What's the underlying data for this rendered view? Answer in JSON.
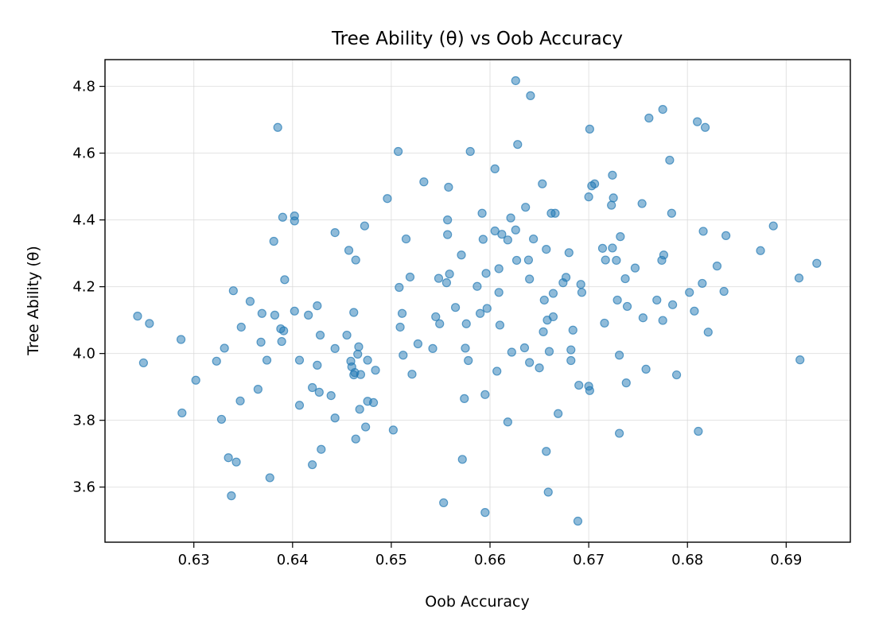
{
  "chart_data": {
    "type": "scatter",
    "title": "Tree Ability (θ) vs Oob Accuracy",
    "xlabel": "Oob Accuracy",
    "ylabel": "Tree Ability (θ)",
    "xlim": [
      0.621,
      0.6965
    ],
    "ylim": [
      3.435,
      4.88
    ],
    "xticks": [
      0.63,
      0.64,
      0.65,
      0.66,
      0.67,
      0.68,
      0.69
    ],
    "xtick_labels": [
      "0.63",
      "0.64",
      "0.65",
      "0.66",
      "0.67",
      "0.68",
      "0.69"
    ],
    "yticks": [
      3.6,
      3.8,
      4.0,
      4.2,
      4.4,
      4.6,
      4.8
    ],
    "ytick_labels": [
      "3.6",
      "3.8",
      "4.0",
      "4.2",
      "4.4",
      "4.6",
      "4.8"
    ],
    "grid": true,
    "color": "#1f77b4",
    "points": [
      [
        0.6243,
        4.112
      ],
      [
        0.6249,
        3.972
      ],
      [
        0.6255,
        4.09
      ],
      [
        0.6287,
        4.042
      ],
      [
        0.6288,
        3.822
      ],
      [
        0.6302,
        3.92
      ],
      [
        0.6323,
        3.977
      ],
      [
        0.6328,
        3.803
      ],
      [
        0.6331,
        4.016
      ],
      [
        0.6335,
        3.688
      ],
      [
        0.6338,
        3.574
      ],
      [
        0.634,
        4.188
      ],
      [
        0.6343,
        3.675
      ],
      [
        0.6347,
        3.858
      ],
      [
        0.6348,
        4.079
      ],
      [
        0.6357,
        4.156
      ],
      [
        0.6365,
        3.893
      ],
      [
        0.6368,
        4.034
      ],
      [
        0.6369,
        4.12
      ],
      [
        0.6374,
        3.98
      ],
      [
        0.6377,
        3.628
      ],
      [
        0.6381,
        4.336
      ],
      [
        0.6382,
        4.115
      ],
      [
        0.6385,
        4.677
      ],
      [
        0.6388,
        4.074
      ],
      [
        0.6389,
        4.036
      ],
      [
        0.639,
        4.408
      ],
      [
        0.6391,
        4.068
      ],
      [
        0.6392,
        4.221
      ],
      [
        0.6402,
        4.127
      ],
      [
        0.6402,
        4.412
      ],
      [
        0.6402,
        4.397
      ],
      [
        0.6407,
        3.98
      ],
      [
        0.6407,
        3.845
      ],
      [
        0.6416,
        4.115
      ],
      [
        0.642,
        3.898
      ],
      [
        0.642,
        3.667
      ],
      [
        0.6425,
        4.143
      ],
      [
        0.6425,
        3.965
      ],
      [
        0.6427,
        3.884
      ],
      [
        0.6428,
        4.055
      ],
      [
        0.6429,
        3.713
      ],
      [
        0.6439,
        3.874
      ],
      [
        0.6443,
        4.362
      ],
      [
        0.6443,
        4.015
      ],
      [
        0.6443,
        3.807
      ],
      [
        0.6455,
        4.055
      ],
      [
        0.6457,
        4.309
      ],
      [
        0.6459,
        3.977
      ],
      [
        0.646,
        3.96
      ],
      [
        0.6462,
        3.936
      ],
      [
        0.6462,
        4.123
      ],
      [
        0.6463,
        3.943
      ],
      [
        0.6464,
        4.28
      ],
      [
        0.6464,
        3.744
      ],
      [
        0.6466,
        3.998
      ],
      [
        0.6467,
        4.02
      ],
      [
        0.6468,
        3.833
      ],
      [
        0.6469,
        3.937
      ],
      [
        0.6473,
        4.382
      ],
      [
        0.6474,
        3.78
      ],
      [
        0.6476,
        3.98
      ],
      [
        0.6476,
        3.857
      ],
      [
        0.6482,
        3.853
      ],
      [
        0.6484,
        3.95
      ],
      [
        0.6496,
        4.464
      ],
      [
        0.6502,
        3.771
      ],
      [
        0.6507,
        4.605
      ],
      [
        0.6508,
        4.198
      ],
      [
        0.6509,
        4.079
      ],
      [
        0.6511,
        4.12
      ],
      [
        0.6512,
        3.995
      ],
      [
        0.6515,
        4.343
      ],
      [
        0.6519,
        4.229
      ],
      [
        0.6521,
        3.938
      ],
      [
        0.6527,
        4.029
      ],
      [
        0.6533,
        4.514
      ],
      [
        0.6542,
        4.015
      ],
      [
        0.6545,
        4.11
      ],
      [
        0.6548,
        4.225
      ],
      [
        0.6549,
        4.089
      ],
      [
        0.6553,
        3.553
      ],
      [
        0.6556,
        4.212
      ],
      [
        0.6557,
        4.356
      ],
      [
        0.6557,
        4.4
      ],
      [
        0.6558,
        4.498
      ],
      [
        0.6559,
        4.238
      ],
      [
        0.6565,
        4.138
      ],
      [
        0.6571,
        4.295
      ],
      [
        0.6572,
        3.683
      ],
      [
        0.6574,
        3.865
      ],
      [
        0.6575,
        4.016
      ],
      [
        0.6576,
        4.089
      ],
      [
        0.6578,
        3.979
      ],
      [
        0.658,
        4.605
      ],
      [
        0.6587,
        4.201
      ],
      [
        0.659,
        4.12
      ],
      [
        0.6592,
        4.42
      ],
      [
        0.6593,
        4.342
      ],
      [
        0.6595,
        3.524
      ],
      [
        0.6595,
        3.877
      ],
      [
        0.6596,
        4.24
      ],
      [
        0.6597,
        4.135
      ],
      [
        0.6605,
        4.367
      ],
      [
        0.6605,
        4.553
      ],
      [
        0.6607,
        3.947
      ],
      [
        0.6609,
        4.254
      ],
      [
        0.6609,
        4.183
      ],
      [
        0.661,
        4.085
      ],
      [
        0.6612,
        4.357
      ],
      [
        0.6618,
        4.34
      ],
      [
        0.6618,
        3.795
      ],
      [
        0.6621,
        4.406
      ],
      [
        0.6622,
        4.004
      ],
      [
        0.6626,
        4.37
      ],
      [
        0.6626,
        4.817
      ],
      [
        0.6627,
        4.279
      ],
      [
        0.6628,
        4.626
      ],
      [
        0.6635,
        4.017
      ],
      [
        0.6636,
        4.438
      ],
      [
        0.6639,
        4.28
      ],
      [
        0.664,
        4.223
      ],
      [
        0.664,
        3.973
      ],
      [
        0.6641,
        4.772
      ],
      [
        0.6644,
        4.343
      ],
      [
        0.665,
        3.957
      ],
      [
        0.6653,
        4.508
      ],
      [
        0.6654,
        4.065
      ],
      [
        0.6655,
        4.16
      ],
      [
        0.6657,
        3.707
      ],
      [
        0.6657,
        4.312
      ],
      [
        0.6658,
        4.1
      ],
      [
        0.6659,
        3.585
      ],
      [
        0.666,
        4.006
      ],
      [
        0.6662,
        4.42
      ],
      [
        0.6664,
        4.18
      ],
      [
        0.6664,
        4.11
      ],
      [
        0.6666,
        4.42
      ],
      [
        0.6669,
        3.82
      ],
      [
        0.6674,
        4.212
      ],
      [
        0.6677,
        4.228
      ],
      [
        0.668,
        4.302
      ],
      [
        0.6682,
        4.011
      ],
      [
        0.6682,
        3.979
      ],
      [
        0.6684,
        4.07
      ],
      [
        0.6689,
        3.498
      ],
      [
        0.669,
        3.905
      ],
      [
        0.6692,
        4.207
      ],
      [
        0.6693,
        4.183
      ],
      [
        0.67,
        4.469
      ],
      [
        0.67,
        3.902
      ],
      [
        0.6701,
        4.672
      ],
      [
        0.6701,
        3.889
      ],
      [
        0.6703,
        4.502
      ],
      [
        0.6706,
        4.508
      ],
      [
        0.6714,
        4.315
      ],
      [
        0.6716,
        4.091
      ],
      [
        0.6717,
        4.28
      ],
      [
        0.6723,
        4.444
      ],
      [
        0.6724,
        4.534
      ],
      [
        0.6724,
        4.316
      ],
      [
        0.6725,
        4.466
      ],
      [
        0.6728,
        4.279
      ],
      [
        0.6729,
        4.16
      ],
      [
        0.6731,
        3.761
      ],
      [
        0.6731,
        3.995
      ],
      [
        0.6732,
        4.35
      ],
      [
        0.6737,
        4.224
      ],
      [
        0.6738,
        3.912
      ],
      [
        0.6739,
        4.141
      ],
      [
        0.6747,
        4.256
      ],
      [
        0.6754,
        4.449
      ],
      [
        0.6755,
        4.107
      ],
      [
        0.6758,
        3.953
      ],
      [
        0.6761,
        4.705
      ],
      [
        0.6769,
        4.16
      ],
      [
        0.6774,
        4.279
      ],
      [
        0.6775,
        4.731
      ],
      [
        0.6775,
        4.099
      ],
      [
        0.6776,
        4.295
      ],
      [
        0.6782,
        4.579
      ],
      [
        0.6784,
        4.42
      ],
      [
        0.6785,
        4.146
      ],
      [
        0.6789,
        3.936
      ],
      [
        0.6802,
        4.183
      ],
      [
        0.6807,
        4.127
      ],
      [
        0.681,
        4.694
      ],
      [
        0.6811,
        3.767
      ],
      [
        0.6815,
        4.21
      ],
      [
        0.6816,
        4.366
      ],
      [
        0.6818,
        4.677
      ],
      [
        0.6821,
        4.064
      ],
      [
        0.683,
        4.262
      ],
      [
        0.6837,
        4.186
      ],
      [
        0.6839,
        4.353
      ],
      [
        0.6874,
        4.308
      ],
      [
        0.6887,
        4.382
      ],
      [
        0.6913,
        4.226
      ],
      [
        0.6914,
        3.981
      ],
      [
        0.6931,
        4.27
      ]
    ]
  }
}
